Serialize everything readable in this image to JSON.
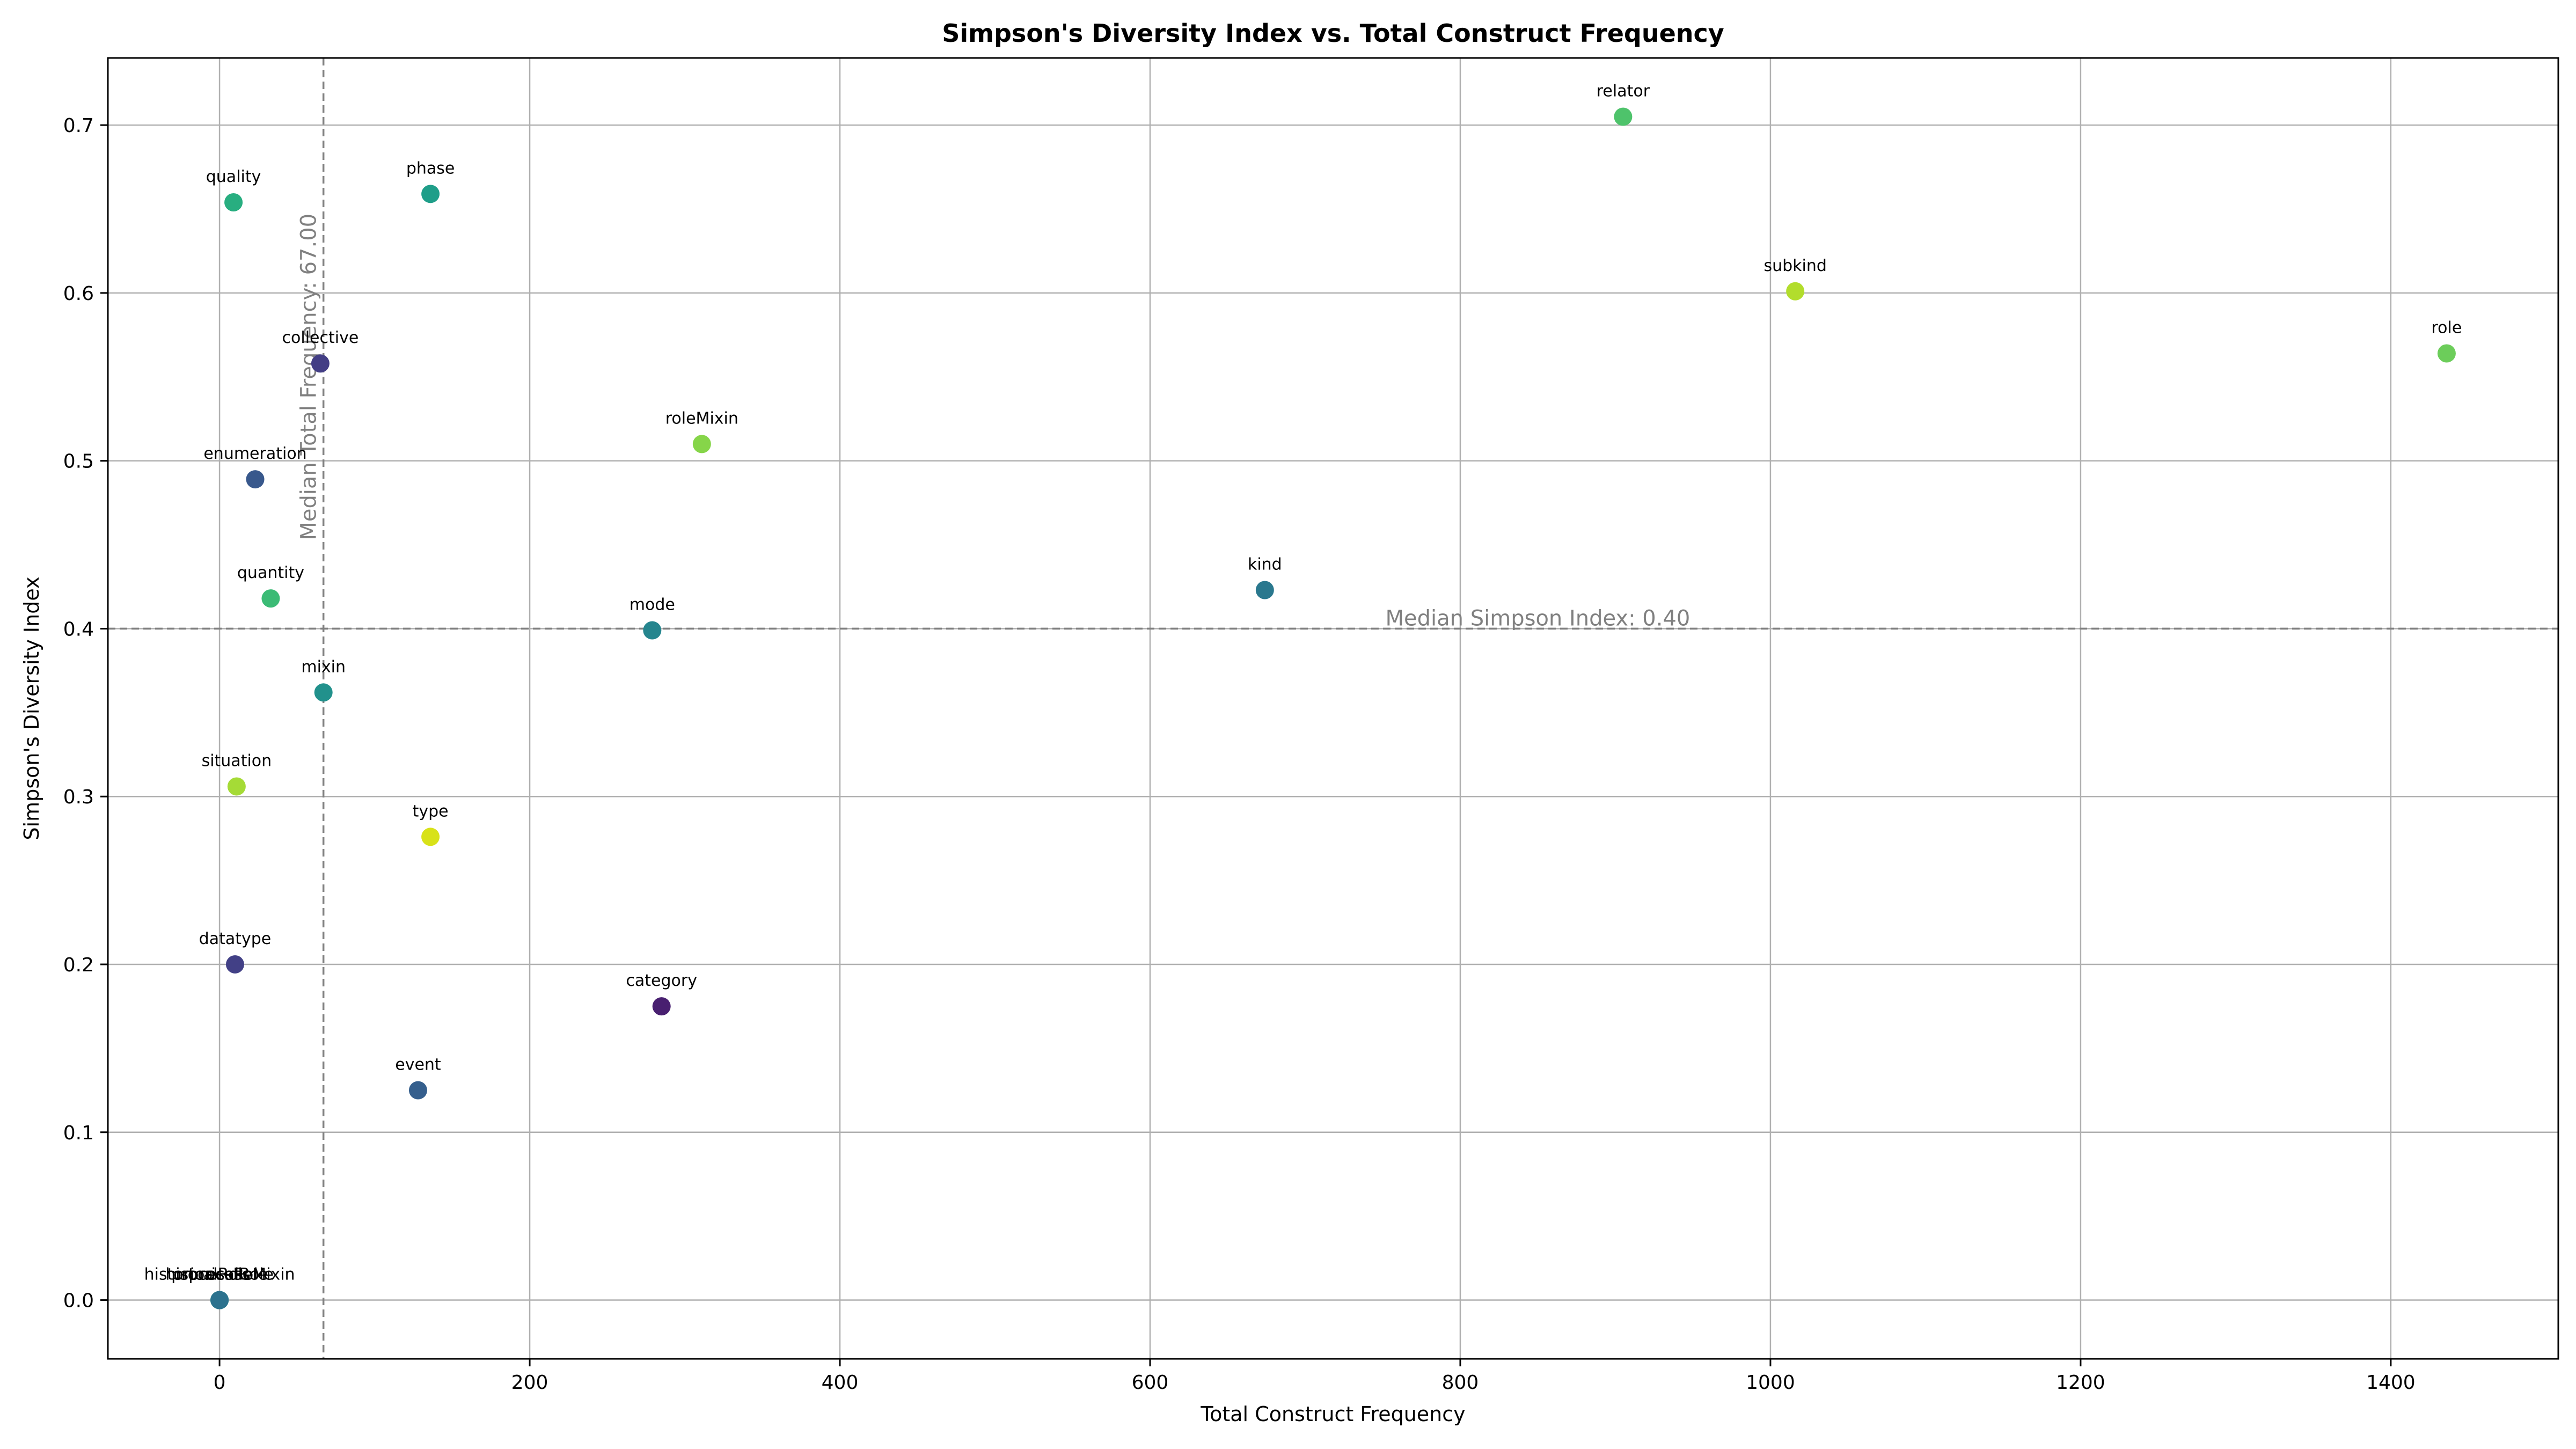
{
  "chart_data": {
    "type": "scatter",
    "title": "Simpson's Diversity Index vs. Total Construct Frequency",
    "xlabel": "Total Construct Frequency",
    "ylabel": "Simpson's Diversity Index",
    "xlim": [
      -72,
      1508
    ],
    "ylim": [
      -0.035,
      0.74
    ],
    "xticks": [
      0,
      200,
      400,
      600,
      800,
      1000,
      1200,
      1400
    ],
    "yticks": [
      0.0,
      0.1,
      0.2,
      0.3,
      0.4,
      0.5,
      0.6,
      0.7
    ],
    "xtick_labels": [
      "0",
      "200",
      "400",
      "600",
      "800",
      "1000",
      "1200",
      "1400"
    ],
    "ytick_labels": [
      "0.0",
      "0.1",
      "0.2",
      "0.3",
      "0.4",
      "0.5",
      "0.6",
      "0.7"
    ],
    "grid": true,
    "median_x": {
      "value": 67,
      "label": "Median Total Frequency: 67.00"
    },
    "median_y": {
      "value": 0.4,
      "label": "Median Simpson Index: 0.40"
    },
    "points": [
      {
        "label": "relator",
        "x": 905,
        "y": 0.705,
        "color": "#4ec36b"
      },
      {
        "label": "subkind",
        "x": 1016,
        "y": 0.601,
        "color": "#b2dd2c"
      },
      {
        "label": "role",
        "x": 1436,
        "y": 0.564,
        "color": "#6ccd5a"
      },
      {
        "label": "phase",
        "x": 136,
        "y": 0.659,
        "color": "#1f9e89"
      },
      {
        "label": "quality",
        "x": 9,
        "y": 0.654,
        "color": "#28ae80"
      },
      {
        "label": "collective",
        "x": 65,
        "y": 0.558,
        "color": "#433e85"
      },
      {
        "label": "roleMixin",
        "x": 311,
        "y": 0.51,
        "color": "#86d549"
      },
      {
        "label": "enumeration",
        "x": 23,
        "y": 0.489,
        "color": "#38588c"
      },
      {
        "label": "kind",
        "x": 674,
        "y": 0.423,
        "color": "#2a788e"
      },
      {
        "label": "quantity",
        "x": 33,
        "y": 0.418,
        "color": "#3bbb75"
      },
      {
        "label": "mode",
        "x": 279,
        "y": 0.399,
        "color": "#25858e"
      },
      {
        "label": "mixin",
        "x": 67,
        "y": 0.362,
        "color": "#21918c"
      },
      {
        "label": "situation",
        "x": 11,
        "y": 0.306,
        "color": "#a5db36"
      },
      {
        "label": "type",
        "x": 136,
        "y": 0.276,
        "color": "#d8e219"
      },
      {
        "label": "datatype",
        "x": 10,
        "y": 0.2,
        "color": "#424086"
      },
      {
        "label": "category",
        "x": 285,
        "y": 0.175,
        "color": "#481f70"
      },
      {
        "label": "event",
        "x": 128,
        "y": 0.125,
        "color": "#355f8d"
      },
      {
        "label": "historicalRole",
        "x": 0,
        "y": 0.0,
        "color": "#29af7f"
      },
      {
        "label": "historicalRoleMixin",
        "x": 0,
        "y": 0.0,
        "color": "#31b57b"
      },
      {
        "label": "process",
        "x": 0,
        "y": 0.0,
        "color": "#1f978b"
      },
      {
        "label": "processRole",
        "x": 0,
        "y": 0.0,
        "color": "#2c728e"
      }
    ]
  }
}
